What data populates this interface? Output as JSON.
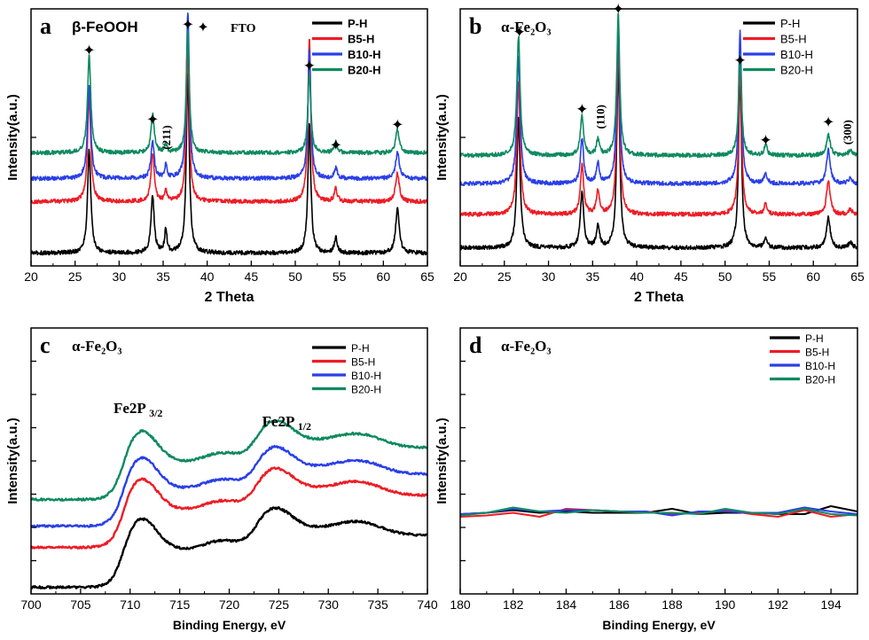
{
  "colors": {
    "P-H": "#000000",
    "B5-H": "#ee1c25",
    "B10-H": "#2a3fe8",
    "B20-H": "#0f8a5f",
    "axis": "#000000"
  },
  "chart_data": [
    {
      "id": "a",
      "type": "line",
      "panel_letter": "a",
      "title": "β-FeOOH",
      "marker_legend": {
        "symbol": "✦",
        "label": "FTO"
      },
      "xlabel": "2 Theta",
      "ylabel": "Intensity(a.u.)",
      "xlim": [
        20,
        65
      ],
      "ylim": [
        0,
        100
      ],
      "xticks": [
        20,
        25,
        30,
        35,
        40,
        45,
        50,
        55,
        60,
        65
      ],
      "legend": [
        "P-H",
        "B5-H",
        "B10-H",
        "B20-H"
      ],
      "legend_position": "top-right",
      "series": [
        {
          "name": "P-H",
          "baseline": 5,
          "noise": 0.8,
          "peaks": [
            [
              26.6,
              40,
              0.22
            ],
            [
              33.8,
              22,
              0.22
            ],
            [
              35.3,
              9,
              0.16
            ],
            [
              37.8,
              70,
              0.2
            ],
            [
              51.6,
              50,
              0.2
            ],
            [
              54.6,
              6,
              0.2
            ],
            [
              61.6,
              17,
              0.25
            ]
          ]
        },
        {
          "name": "B5-H",
          "baseline": 25,
          "noise": 0.8,
          "peaks": [
            [
              26.6,
              41,
              0.22
            ],
            [
              33.8,
              19,
              0.22
            ],
            [
              35.3,
              4,
              0.16
            ],
            [
              37.8,
              60,
              0.2
            ],
            [
              51.6,
              63,
              0.2
            ],
            [
              54.6,
              5,
              0.2
            ],
            [
              61.6,
              11,
              0.25
            ]
          ]
        },
        {
          "name": "B10-H",
          "baseline": 34,
          "noise": 0.8,
          "peaks": [
            [
              26.6,
              36,
              0.22
            ],
            [
              33.8,
              14,
              0.22
            ],
            [
              35.3,
              5,
              0.16
            ],
            [
              37.8,
              65,
              0.2
            ],
            [
              51.6,
              50,
              0.2
            ],
            [
              54.6,
              4,
              0.2
            ],
            [
              61.6,
              10,
              0.25
            ]
          ]
        },
        {
          "name": "B20-H",
          "baseline": 44,
          "noise": 0.8,
          "peaks": [
            [
              26.6,
              38,
              0.22
            ],
            [
              33.8,
              15,
              0.22
            ],
            [
              35.3,
              3,
              0.16
            ],
            [
              37.8,
              47,
              0.2
            ],
            [
              51.6,
              31,
              0.2
            ],
            [
              54.6,
              4,
              0.2
            ],
            [
              61.6,
              9,
              0.25
            ]
          ]
        }
      ],
      "annotations": [
        {
          "text": "✦",
          "x": 26.6,
          "y": 84,
          "kind": "star"
        },
        {
          "text": "✦",
          "x": 33.8,
          "y": 57,
          "kind": "star"
        },
        {
          "text": "✦",
          "x": 37.8,
          "y": 94,
          "kind": "star"
        },
        {
          "text": "✦",
          "x": 51.6,
          "y": 78,
          "kind": "star"
        },
        {
          "text": "✦",
          "x": 54.6,
          "y": 47,
          "kind": "star"
        },
        {
          "text": "✦",
          "x": 61.6,
          "y": 55,
          "kind": "star"
        },
        {
          "text": "(211)",
          "x": 35.8,
          "y": 50,
          "kind": "hkl"
        }
      ]
    },
    {
      "id": "b",
      "type": "line",
      "panel_letter": "b",
      "title": "α-Fe₂O₃",
      "xlabel": "2 Theta",
      "ylabel": "Intensity(a.u.)",
      "xlim": [
        20,
        65
      ],
      "ylim": [
        0,
        100
      ],
      "xticks": [
        20,
        25,
        30,
        35,
        40,
        45,
        50,
        55,
        60,
        65
      ],
      "legend": [
        "P-H",
        "B5-H",
        "B10-H",
        "B20-H"
      ],
      "legend_position": "top-right",
      "series": [
        {
          "name": "P-H",
          "baseline": 7,
          "noise": 0.8,
          "peaks": [
            [
              26.6,
              51,
              0.22
            ],
            [
              33.8,
              22,
              0.22
            ],
            [
              35.6,
              9,
              0.2
            ],
            [
              37.9,
              72,
              0.2
            ],
            [
              51.7,
              67,
              0.2
            ],
            [
              54.6,
              4,
              0.2
            ],
            [
              61.7,
              12,
              0.25
            ],
            [
              64.2,
              2,
              0.25
            ]
          ]
        },
        {
          "name": "B5-H",
          "baseline": 20,
          "noise": 0.8,
          "peaks": [
            [
              26.6,
              52,
              0.22
            ],
            [
              33.8,
              19,
              0.22
            ],
            [
              35.6,
              9,
              0.2
            ],
            [
              37.9,
              67,
              0.2
            ],
            [
              51.7,
              58,
              0.2
            ],
            [
              54.6,
              4,
              0.2
            ],
            [
              61.7,
              13,
              0.25
            ],
            [
              64.2,
              2,
              0.25
            ]
          ]
        },
        {
          "name": "B10-H",
          "baseline": 32,
          "noise": 0.8,
          "peaks": [
            [
              26.6,
              50,
              0.22
            ],
            [
              33.8,
              17,
              0.22
            ],
            [
              35.6,
              8,
              0.2
            ],
            [
              37.9,
              63,
              0.2
            ],
            [
              51.7,
              59,
              0.2
            ],
            [
              54.6,
              4,
              0.2
            ],
            [
              61.7,
              13,
              0.25
            ],
            [
              64.2,
              2,
              0.25
            ]
          ]
        },
        {
          "name": "B20-H",
          "baseline": 43,
          "noise": 0.8,
          "peaks": [
            [
              26.6,
              46,
              0.22
            ],
            [
              33.8,
              15,
              0.22
            ],
            [
              35.6,
              6,
              0.2
            ],
            [
              37.9,
              55,
              0.2
            ],
            [
              51.7,
              39,
              0.2
            ],
            [
              54.6,
              4,
              0.2
            ],
            [
              61.7,
              8,
              0.25
            ],
            [
              64.2,
              2,
              0.25
            ]
          ]
        }
      ],
      "annotations": [
        {
          "text": "✦",
          "x": 26.7,
          "y": 91,
          "kind": "star"
        },
        {
          "text": "✦",
          "x": 33.8,
          "y": 61,
          "kind": "star"
        },
        {
          "text": "✦",
          "x": 37.9,
          "y": 100,
          "kind": "star"
        },
        {
          "text": "✦",
          "x": 51.7,
          "y": 80,
          "kind": "star"
        },
        {
          "text": "✦",
          "x": 54.6,
          "y": 49,
          "kind": "star"
        },
        {
          "text": "✦",
          "x": 61.7,
          "y": 56,
          "kind": "star"
        },
        {
          "text": "(110)",
          "x": 36.3,
          "y": 58,
          "kind": "hkl"
        },
        {
          "text": "(300)",
          "x": 64.3,
          "y": 52,
          "kind": "hkl"
        }
      ]
    },
    {
      "id": "c",
      "type": "line",
      "panel_letter": "c",
      "title": "α-Fe₂O₃",
      "xlabel": "Binding Energy, eV",
      "ylabel": "Intensity(a.u.)",
      "xlim": [
        700,
        740
      ],
      "ylim": [
        0,
        100
      ],
      "xticks": [
        700,
        705,
        710,
        715,
        720,
        725,
        730,
        735,
        740
      ],
      "legend": [
        "P-H",
        "B5-H",
        "B10-H",
        "B20-H"
      ],
      "legend_position": "top-right",
      "series": [
        {
          "name": "P-H",
          "offset": 1,
          "noise": 0.4
        },
        {
          "name": "B5-H",
          "offset": 16,
          "noise": 0.4
        },
        {
          "name": "B10-H",
          "offset": 24,
          "noise": 0.4
        },
        {
          "name": "B20-H",
          "offset": 34,
          "noise": 0.4
        }
      ],
      "annotations": [
        {
          "text": "Fe2P",
          "sub": "3/2",
          "x": 710.8,
          "y": 68,
          "kind": "label"
        },
        {
          "text": "Fe2P",
          "sub": "1/2",
          "x": 725.8,
          "y": 63,
          "kind": "label"
        }
      ]
    },
    {
      "id": "d",
      "type": "line",
      "panel_letter": "d",
      "title": "α-Fe₂O₃",
      "xlabel": "Binding Energy, eV",
      "ylabel": "Intensity(a.u.)",
      "xlim": [
        180,
        195
      ],
      "ylim": [
        0,
        100
      ],
      "xticks": [
        180,
        182,
        184,
        186,
        188,
        190,
        192,
        194
      ],
      "legend": [
        "P-H",
        "B5-H",
        "B10-H",
        "B20-H"
      ],
      "legend_position": "top-right",
      "series": [
        {
          "name": "P-H",
          "x": [
            180,
            181,
            182,
            183,
            184,
            185,
            186,
            187,
            188,
            189,
            190,
            191,
            192,
            193,
            194,
            195
          ],
          "values": [
            30,
            30.5,
            31.5,
            30.5,
            31,
            30.5,
            30.5,
            30.5,
            32,
            30,
            30.5,
            30.5,
            30,
            30,
            33,
            31
          ]
        },
        {
          "name": "B5-H",
          "x": [
            180,
            181,
            182,
            183,
            184,
            185,
            186,
            187,
            188,
            189,
            190,
            191,
            192,
            193,
            194,
            195
          ],
          "values": [
            29,
            29.5,
            30.5,
            29,
            32,
            31.5,
            31,
            31,
            30,
            30.5,
            31.5,
            30,
            29,
            31.5,
            29,
            30
          ]
        },
        {
          "name": "B10-H",
          "x": [
            180,
            181,
            182,
            183,
            184,
            185,
            186,
            187,
            188,
            189,
            190,
            191,
            192,
            193,
            194,
            195
          ],
          "values": [
            30,
            30.5,
            32,
            31,
            31.5,
            31.5,
            31,
            31,
            29.5,
            31,
            31,
            30.5,
            30.5,
            32.5,
            31,
            30
          ]
        },
        {
          "name": "B20-H",
          "x": [
            180,
            181,
            182,
            183,
            184,
            185,
            186,
            187,
            188,
            189,
            190,
            191,
            192,
            193,
            194,
            195
          ],
          "values": [
            29.5,
            30.5,
            32.5,
            31,
            30.5,
            31.5,
            31,
            30.5,
            30.5,
            30,
            32,
            30.5,
            30,
            32,
            30,
            29.5
          ]
        }
      ]
    }
  ]
}
